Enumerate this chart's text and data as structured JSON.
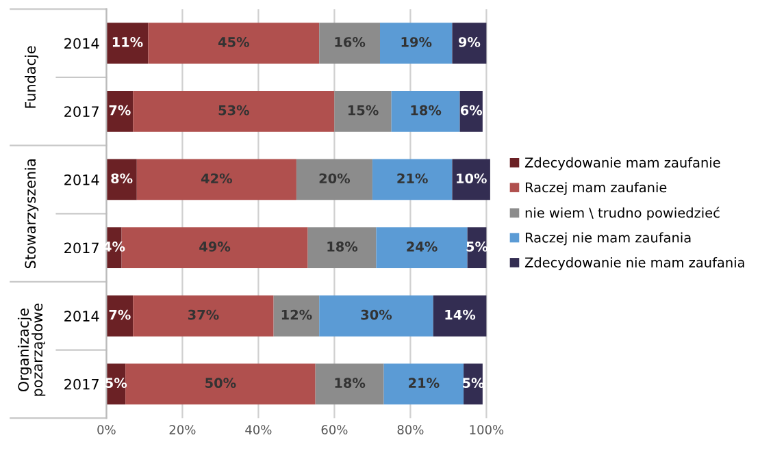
{
  "chart_data": {
    "type": "bar",
    "orientation": "horizontal",
    "stacked": true,
    "categories": [
      "2014",
      "2017",
      "2014",
      "2017",
      "2014",
      "2017"
    ],
    "series": [
      {
        "name": "Zdecydowanie mam zaufanie",
        "color": "#6b2125",
        "values": [
          11,
          7,
          8,
          4,
          7,
          5
        ],
        "value_labels": [
          "11%",
          "7%",
          "8%",
          "4%",
          "7%",
          "5%"
        ]
      },
      {
        "name": "Raczej mam zaufanie",
        "color": "#b0504e",
        "values": [
          45,
          53,
          42,
          49,
          37,
          50
        ],
        "value_labels": [
          "45%",
          "53%",
          "42%",
          "49%",
          "37%",
          "50%"
        ]
      },
      {
        "name": "nie wiem \\ trudno powiedzieć",
        "color": "#8c8c8c",
        "values": [
          16,
          15,
          20,
          18,
          12,
          18
        ],
        "value_labels": [
          "16%",
          "15%",
          "20%",
          "18%",
          "12%",
          "18%"
        ]
      },
      {
        "name": "Raczej nie mam zaufania",
        "color": "#5b9bd5",
        "values": [
          19,
          18,
          21,
          24,
          30,
          21
        ],
        "value_labels": [
          "19%",
          "18%",
          "21%",
          "24%",
          "30%",
          "21%"
        ]
      },
      {
        "name": "Zdecydowanie nie mam zaufania",
        "color": "#332d52",
        "values": [
          9,
          6,
          10,
          5,
          14,
          5
        ],
        "value_labels": [
          "9%",
          "6%",
          "10%",
          "5%",
          "14%",
          "5%"
        ]
      }
    ],
    "annotations": [
      "Fundacje",
      "Stowarzyszenia",
      "Organizacje\npozarządowe"
    ],
    "xlim": [
      0,
      101
    ],
    "xticks": [
      {
        "value": 0,
        "label": "0%"
      },
      {
        "value": 20,
        "label": "20%"
      },
      {
        "value": 40,
        "label": "40%"
      },
      {
        "value": 60,
        "label": "60%"
      },
      {
        "value": 80,
        "label": "80%"
      },
      {
        "value": 100,
        "label": "100%"
      }
    ],
    "grid": "x",
    "legend": "right"
  }
}
